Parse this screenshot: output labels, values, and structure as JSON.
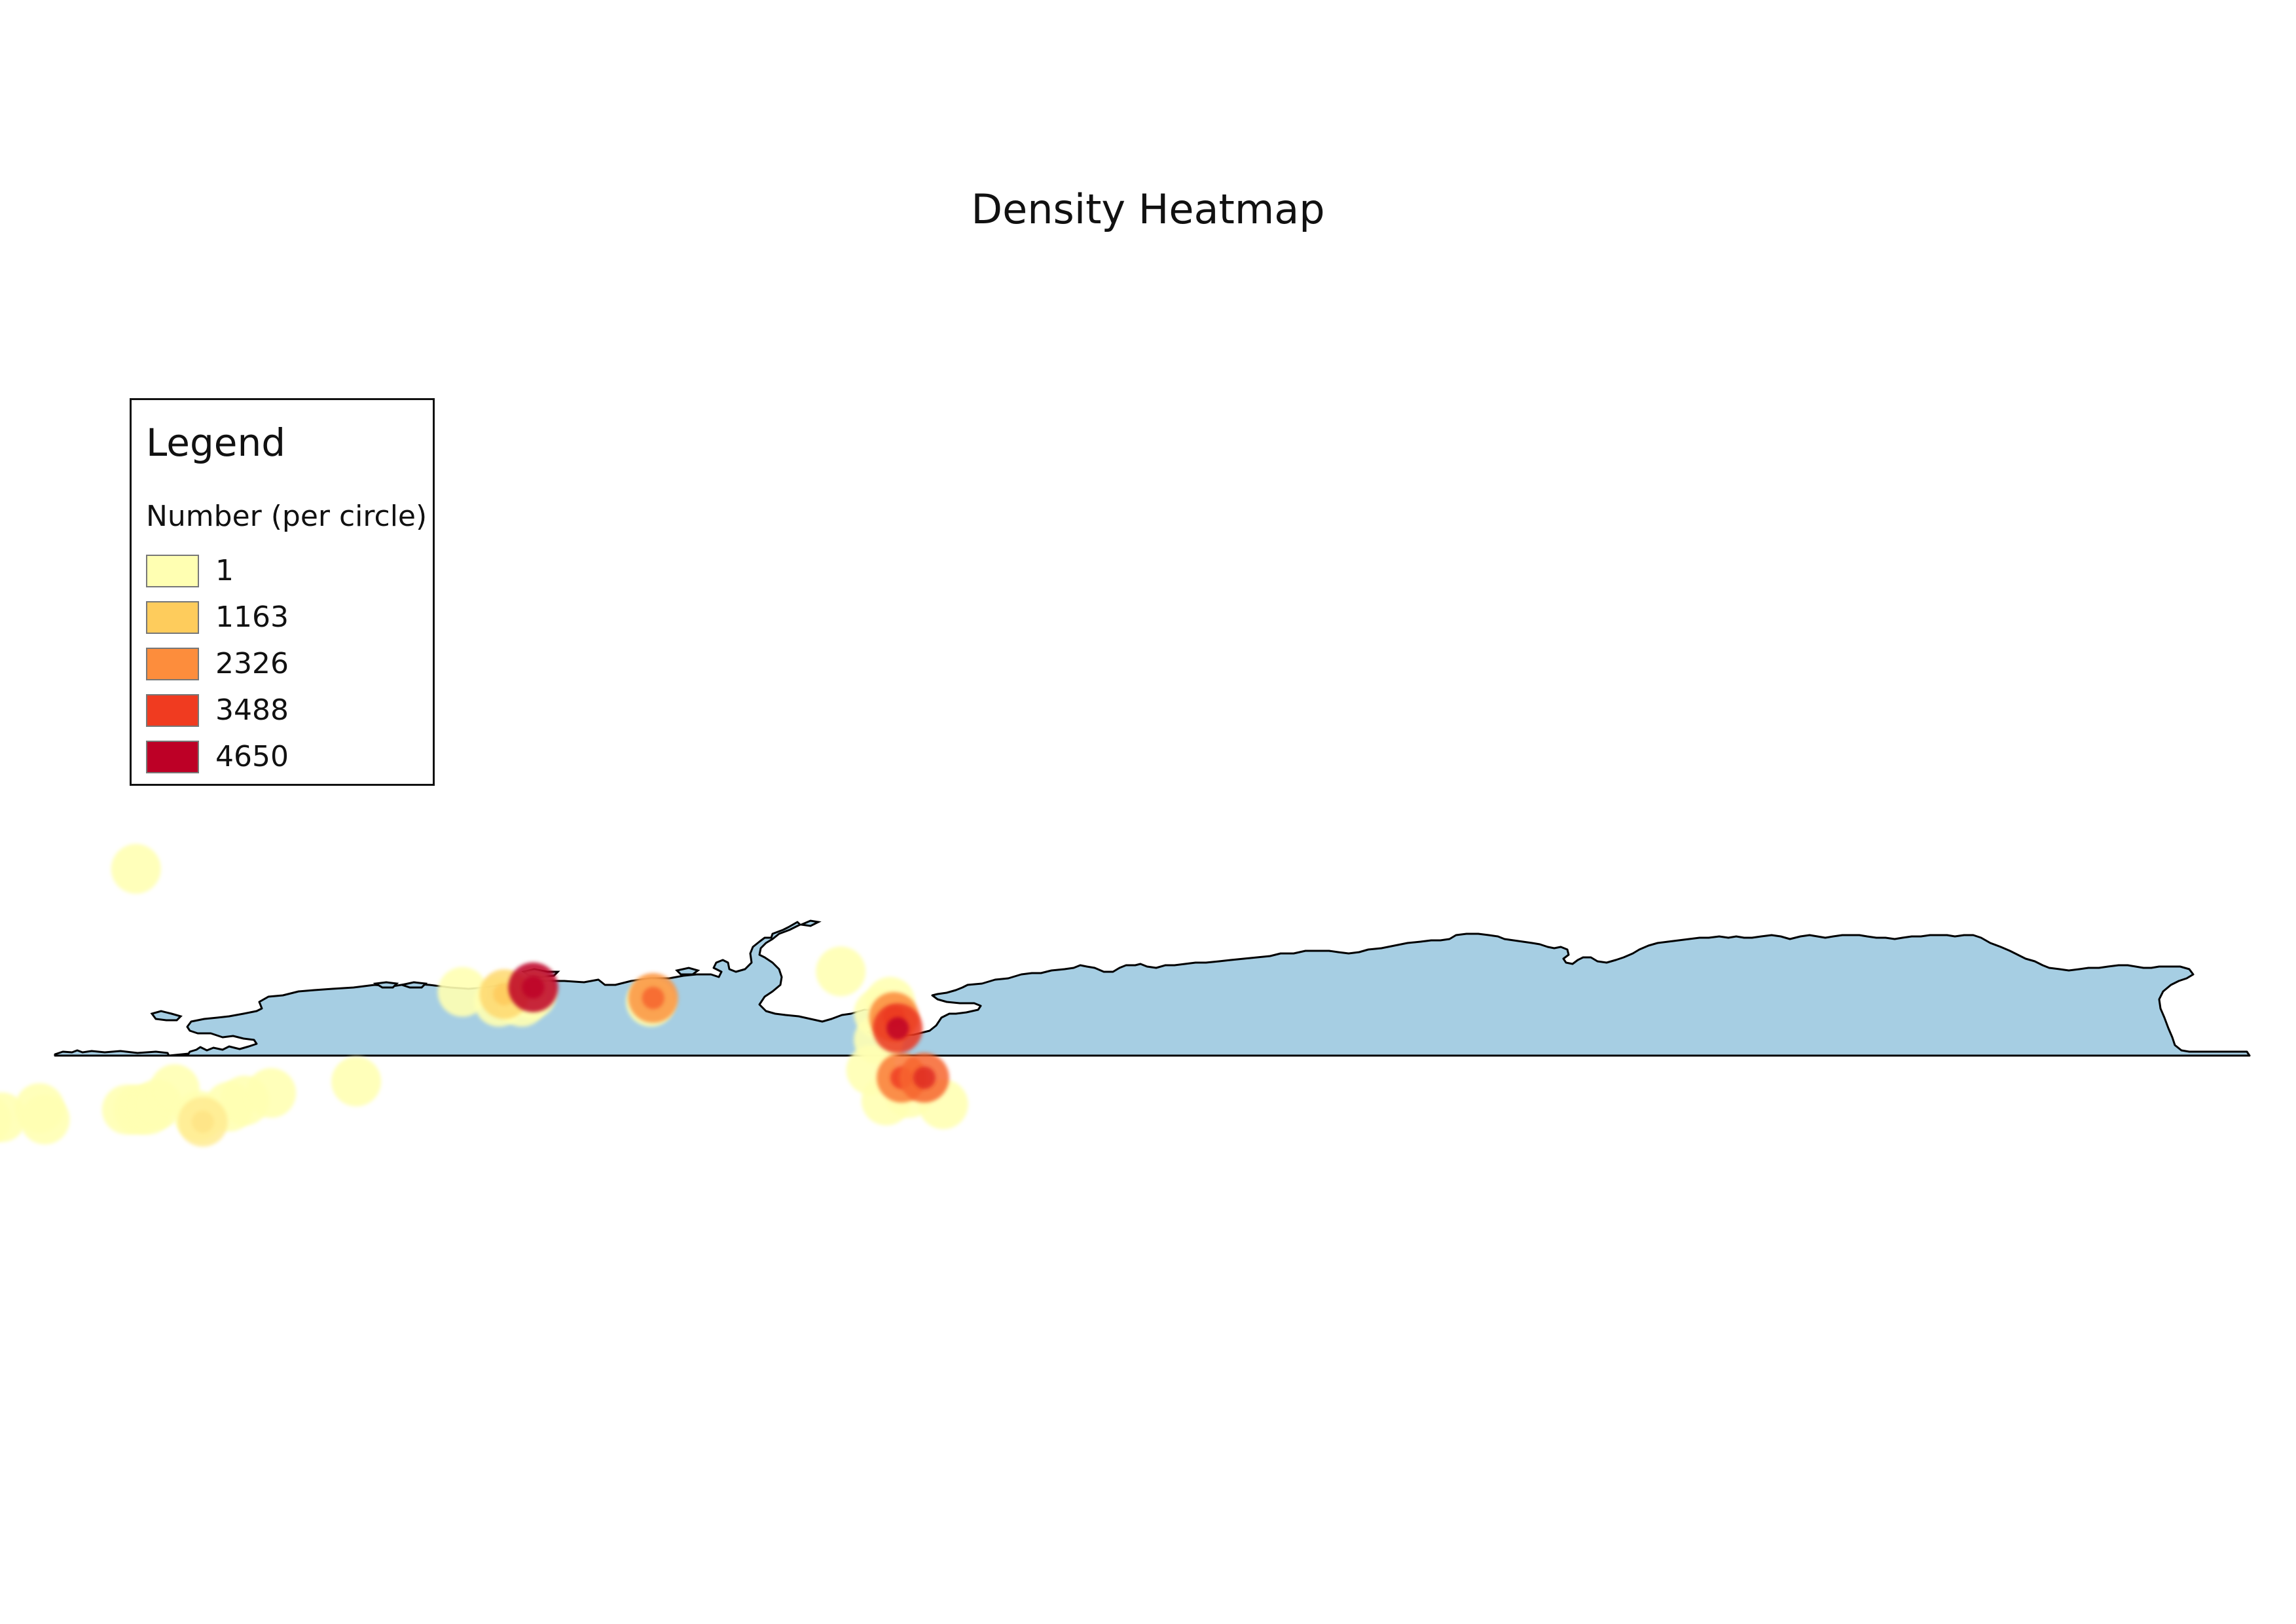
{
  "title": "Density Heatmap",
  "legend": {
    "title": "Legend",
    "subtitle": "Number (per circle)",
    "items": [
      {
        "label": "1",
        "color": "#ffffb2"
      },
      {
        "label": "1163",
        "color": "#fecc5c"
      },
      {
        "label": "2326",
        "color": "#fd8d3c"
      },
      {
        "label": "3488",
        "color": "#f03b20"
      },
      {
        "label": "4650",
        "color": "#bd0026"
      }
    ]
  },
  "colors": {
    "land": "#a6cee3",
    "coastline": "#000000",
    "background": "#ffffff"
  },
  "points": [
    {
      "lon": -161.5,
      "lat": -8.5,
      "value": 1
    },
    {
      "lon": -156.0,
      "lat": -9.0,
      "value": 1
    },
    {
      "lon": -153.0,
      "lat": -8.5,
      "value": 1
    },
    {
      "lon": -151.0,
      "lat": -8.2,
      "value": 1
    },
    {
      "lon": -146.0,
      "lat": -7.0,
      "value": 1
    },
    {
      "lon": -145.3,
      "lat": -8.5,
      "value": 1
    },
    {
      "lon": -134.5,
      "lat": -7.2,
      "value": 1
    },
    {
      "lon": -133.0,
      "lat": -7.2,
      "value": 1
    },
    {
      "lon": -131.7,
      "lat": -7.2,
      "value": 1
    },
    {
      "lon": -130.5,
      "lat": -6.5,
      "value": 1
    },
    {
      "lon": -128.2,
      "lat": -4.5,
      "value": 1
    },
    {
      "lon": -133.3,
      "lat": 24.5,
      "value": 1
    },
    {
      "lon": -125.0,
      "lat": -8.0,
      "value": 1
    },
    {
      "lon": -124.5,
      "lat": -8.8,
      "value": 450
    },
    {
      "lon": -121.0,
      "lat": -6.8,
      "value": 1
    },
    {
      "lon": -119.0,
      "lat": -6.0,
      "value": 1
    },
    {
      "lon": -115.5,
      "lat": -5.0,
      "value": 1
    },
    {
      "lon": -104.3,
      "lat": -3.5,
      "value": 1
    },
    {
      "lon": -90.3,
      "lat": 8.3,
      "value": 1
    },
    {
      "lon": -85.5,
      "lat": 7.0,
      "value": 1
    },
    {
      "lon": -84.8,
      "lat": 8.0,
      "value": 900
    },
    {
      "lon": -82.5,
      "lat": 7.0,
      "value": 1
    },
    {
      "lon": -81.2,
      "lat": 8.0,
      "value": 1
    },
    {
      "lon": -81.0,
      "lat": 8.9,
      "value": 4650
    },
    {
      "lon": -65.5,
      "lat": 7.0,
      "value": 1
    },
    {
      "lon": -65.2,
      "lat": 7.5,
      "value": 2200
    },
    {
      "lon": -40.5,
      "lat": 11.0,
      "value": 1
    },
    {
      "lon": -35.5,
      "lat": 5.5,
      "value": 1
    },
    {
      "lon": -34.0,
      "lat": 7.0,
      "value": 1
    },
    {
      "lon": -33.5,
      "lat": 5.0,
      "value": 2400
    },
    {
      "lon": -33.0,
      "lat": 3.5,
      "value": 3600
    },
    {
      "lon": -35.5,
      "lat": 2.0,
      "value": 1
    },
    {
      "lon": -36.5,
      "lat": -2.0,
      "value": 1
    },
    {
      "lon": -34.5,
      "lat": -6.0,
      "value": 1
    },
    {
      "lon": -32.5,
      "lat": -3.0,
      "value": 2600
    },
    {
      "lon": -31.5,
      "lat": -5.0,
      "value": 1
    },
    {
      "lon": -29.5,
      "lat": -3.0,
      "value": 2900
    },
    {
      "lon": -27.0,
      "lat": -6.5,
      "value": 1
    }
  ]
}
